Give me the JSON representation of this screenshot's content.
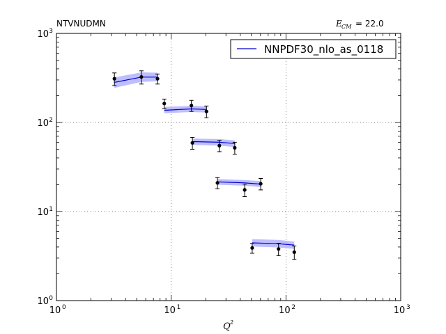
{
  "chart_data": {
    "type": "scatter",
    "title_left": "NTVNUDMN",
    "title_right_symbol": "E",
    "title_right_subscript": "CM",
    "title_right_value": "= 22.0",
    "xlabel_symbol": "Q",
    "xlabel_superscript": "2",
    "xscale": "log",
    "yscale": "log",
    "xlim": [
      1,
      1000
    ],
    "ylim": [
      1,
      1000
    ],
    "grid": true,
    "legend_placement": "top-right",
    "x_ticks": [
      {
        "value": 1,
        "base": "10",
        "exp": "0"
      },
      {
        "value": 10,
        "base": "10",
        "exp": "1"
      },
      {
        "value": 100,
        "base": "10",
        "exp": "2"
      },
      {
        "value": 1000,
        "base": "10",
        "exp": "3"
      }
    ],
    "y_ticks": [
      {
        "value": 1,
        "base": "10",
        "exp": "0"
      },
      {
        "value": 10,
        "base": "10",
        "exp": "1"
      },
      {
        "value": 100,
        "base": "10",
        "exp": "2"
      },
      {
        "value": 1000,
        "base": "10",
        "exp": "3"
      }
    ],
    "colors": {
      "theory_line": "#0000cc",
      "theory_band": "#b3b3ff",
      "data_points": "#000000"
    },
    "data": [
      {
        "x": 3.2,
        "y": 310,
        "err_lo": 50,
        "err_hi": 50
      },
      {
        "x": 5.5,
        "y": 325,
        "err_lo": 55,
        "err_hi": 55
      },
      {
        "x": 7.6,
        "y": 310,
        "err_lo": 40,
        "err_hi": 40
      },
      {
        "x": 8.7,
        "y": 163,
        "err_lo": 20,
        "err_hi": 20
      },
      {
        "x": 15.0,
        "y": 155,
        "err_lo": 22,
        "err_hi": 22
      },
      {
        "x": 20.3,
        "y": 133,
        "err_lo": 20,
        "err_hi": 20
      },
      {
        "x": 15.3,
        "y": 59,
        "err_lo": 9,
        "err_hi": 9
      },
      {
        "x": 26.3,
        "y": 55,
        "err_lo": 8,
        "err_hi": 8
      },
      {
        "x": 35.8,
        "y": 52,
        "err_lo": 8,
        "err_hi": 8
      },
      {
        "x": 25.3,
        "y": 21,
        "err_lo": 3,
        "err_hi": 3
      },
      {
        "x": 43.7,
        "y": 17.5,
        "err_lo": 2.8,
        "err_hi": 2.8
      },
      {
        "x": 60.3,
        "y": 20.5,
        "err_lo": 3,
        "err_hi": 3
      },
      {
        "x": 50.8,
        "y": 3.9,
        "err_lo": 0.5,
        "err_hi": 0.5
      },
      {
        "x": 86.2,
        "y": 3.8,
        "err_lo": 0.6,
        "err_hi": 0.6
      },
      {
        "x": 118.2,
        "y": 3.5,
        "err_lo": 0.6,
        "err_hi": 0.6
      }
    ],
    "series": [
      {
        "name": "NNPDF30_nlo_as_0118",
        "segments": [
          {
            "x": [
              3.2,
              5.5,
              7.6
            ],
            "y": [
              282,
              323,
              323
            ],
            "band_lo": [
              245,
              285,
              290
            ],
            "band_hi": [
              320,
              365,
              362
            ]
          },
          {
            "x": [
              8.7,
              15.0,
              20.3
            ],
            "y": [
              137,
              142,
              140
            ],
            "band_lo": [
              127,
              131,
              129
            ],
            "band_hi": [
              149,
              154,
              152
            ]
          },
          {
            "x": [
              15.3,
              26.3,
              35.8
            ],
            "y": [
              61,
              60,
              58
            ],
            "band_lo": [
              56,
              55,
              53
            ],
            "band_hi": [
              66,
              65,
              63
            ]
          },
          {
            "x": [
              25.3,
              43.7,
              60.3
            ],
            "y": [
              21.5,
              21.0,
              20.3
            ],
            "band_lo": [
              20.0,
              19.5,
              18.8
            ],
            "band_hi": [
              23.2,
              22.6,
              22.0
            ]
          },
          {
            "x": [
              50.8,
              86.2,
              118.2
            ],
            "y": [
              4.45,
              4.35,
              4.2
            ],
            "band_lo": [
              4.05,
              3.95,
              3.8
            ],
            "band_hi": [
              4.9,
              4.8,
              4.6
            ]
          }
        ]
      }
    ]
  }
}
